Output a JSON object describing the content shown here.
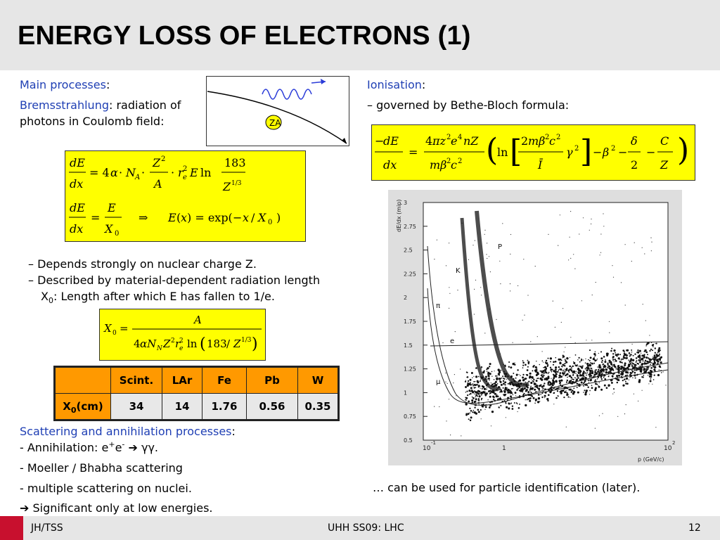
{
  "title": "ENERGY LOSS OF ELECTRONS (1)",
  "left": {
    "main_processes_label": "Main processes",
    "colon": ":",
    "brems_label": "Bremsstrahlung",
    "brems_text1": ": radiation of",
    "brems_text2": "photons in Coulomb field:",
    "bullet1": "– Depends strongly on nuclear charge Z.",
    "bullet2": "– Described by material-dependent radiation length",
    "bullet3_pre": "X",
    "bullet3_sub": "0",
    "bullet3_post": ": Length after which E has fallen to 1/e.",
    "scattering_label": "Scattering and annihilation processes",
    "annih_pre": "- Annihilation: e",
    "annih_sup1": "+",
    "annih_mid": "e",
    "annih_sup2": "-",
    "annih_arrow": "➔",
    "annih_post": "γγ.",
    "moeller": "- Moeller / Bhabha scattering",
    "multiple": "- multiple scattering on nuclei.",
    "significant_arrow": "➔",
    "significant": "Significant only at low energies."
  },
  "table": {
    "headers": [
      "",
      "Scint.",
      "LAr",
      "Fe",
      "Pb",
      "W"
    ],
    "row_label": "X",
    "row_label_sub": "0",
    "row_label_unit": "(cm)",
    "values": [
      "34",
      "14",
      "1.76",
      "0.56",
      "0.35"
    ]
  },
  "right": {
    "ionisation_label": "Ionisation",
    "colon": ":",
    "governed": "– governed by Bethe-Bloch formula:",
    "particle_id": "… can be used for particle identification (later)."
  },
  "plot": {
    "ylabel": "dE/dx (mip)",
    "xlabel": "p (GeV/c)",
    "y_ticks": [
      "0.5",
      "0.75",
      "1",
      "1.25",
      "1.5",
      "1.75",
      "2",
      "2.25",
      "2.5",
      "2.75",
      "3"
    ],
    "x_ticks": [
      "10",
      "1",
      "10"
    ],
    "x_tick_exp": [
      "-1",
      "",
      "2"
    ],
    "curve_labels": [
      "P",
      "K",
      "π",
      "e",
      "μ"
    ]
  },
  "footer": {
    "left": "JH/TSS",
    "center": "UHH SS09: LHC",
    "page": "12",
    "logo": "UHH"
  },
  "colors": {
    "accent": "#1f3fb4",
    "formula_bg": "#ffff00",
    "table_header": "#ff9900"
  }
}
